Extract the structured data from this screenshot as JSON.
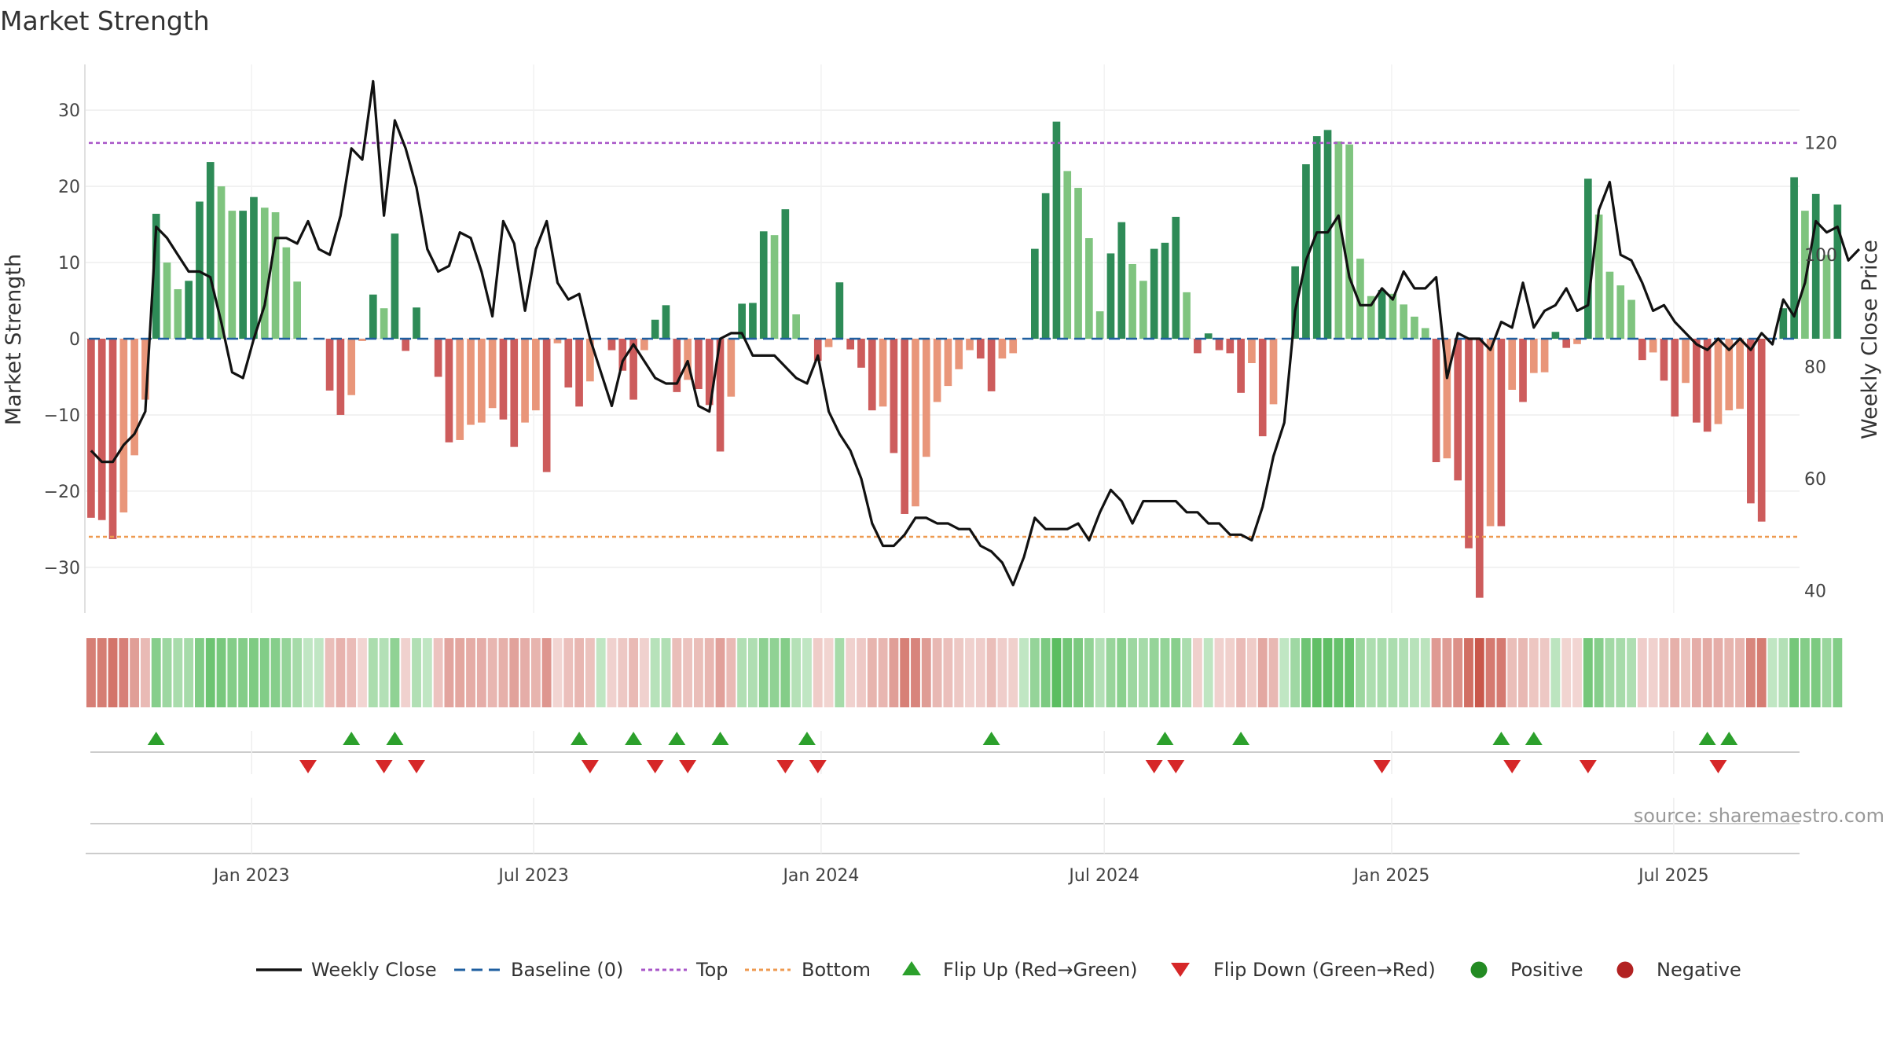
{
  "chart_data": {
    "type": "bar+line",
    "title": "Market Strength",
    "y_left_label": "Market Strength",
    "y_right_label": "Weekly Close Price",
    "y_left_range": [
      -36,
      36
    ],
    "y_right_range": [
      36,
      134
    ],
    "y_left_ticks": [
      30,
      20,
      10,
      0,
      -10,
      -20,
      -30
    ],
    "y_left_tick_labels": [
      "30",
      "20",
      "10",
      "0",
      "−10",
      "−20",
      "−30"
    ],
    "y_right_ticks": [
      120,
      100,
      80,
      60,
      40
    ],
    "y_right_tick_labels": [
      "120",
      "100",
      "80",
      "60",
      "40"
    ],
    "x_range_weeks": [
      0,
      158
    ],
    "x_ticks": [
      {
        "label": "Jan 2023",
        "week": 15.3
      },
      {
        "label": "Jul 2023",
        "week": 41.3
      },
      {
        "label": "Jan 2024",
        "week": 67.8
      },
      {
        "label": "Jul 2024",
        "week": 93.9
      },
      {
        "label": "Jan 2025",
        "week": 120.4
      },
      {
        "label": "Jul 2025",
        "week": 146.4
      }
    ],
    "top_line": 25.7,
    "bottom_line": -26,
    "baseline": 0,
    "market_strength": [
      -23.5,
      -23.8,
      -26.3,
      -22.8,
      -15.3,
      -8,
      16.4,
      10,
      6.5,
      7.6,
      18,
      23.2,
      20,
      16.8,
      16.8,
      18.6,
      17.2,
      16.6,
      12,
      7.5,
      0,
      0,
      -6.8,
      -10,
      -7.4,
      -0.3,
      5.8,
      4,
      13.8,
      -1.6,
      4.1,
      0,
      -5,
      -13.6,
      -13.3,
      -11.3,
      -11,
      -9.1,
      -10.6,
      -14.2,
      -11,
      -9.4,
      -17.5,
      -0.6,
      -6.4,
      -8.9,
      -5.6,
      0,
      -1.5,
      -4.2,
      -8,
      -1.5,
      2.5,
      4.4,
      -7,
      -5.4,
      -6.6,
      -8.7,
      -14.8,
      -7.6,
      4.6,
      4.7,
      14.1,
      13.6,
      17,
      3.2,
      0,
      -2.9,
      -1.1,
      7.4,
      -1.4,
      -3.8,
      -9.4,
      -8.9,
      -15,
      -23,
      -22,
      -15.5,
      -8.3,
      -6.2,
      -4,
      -1.5,
      -2.6,
      -6.9,
      -2.6,
      -1.9,
      0,
      11.8,
      19.1,
      28.5,
      22,
      19.8,
      13.2,
      3.6,
      11.2,
      15.3,
      9.8,
      7.6,
      11.8,
      12.6,
      16,
      6.1,
      -1.9,
      0.7,
      -1.5,
      -1.9,
      -7.1,
      -3.2,
      -12.8,
      -8.6,
      0,
      9.5,
      22.9,
      26.6,
      27.4,
      25.9,
      25.5,
      10.5,
      5.6,
      6.4,
      5.9,
      4.5,
      2.9,
      1.4,
      -16.2,
      -15.7,
      -18.6,
      -27.5,
      -34,
      -24.6,
      -24.6,
      -6.7,
      -8.3,
      -4.5,
      -4.4,
      0.9,
      -1.2,
      -0.7,
      21,
      16.3,
      8.8,
      7,
      5.1,
      -2.8,
      -1.8,
      -5.5,
      -10.2,
      -5.8,
      -11,
      -12.2,
      -11.2,
      -9.4,
      -9.2,
      -21.6,
      -24,
      0,
      4,
      21.2,
      16.8,
      19,
      11,
      17.6
    ],
    "weekly_close": [
      65,
      63,
      63,
      66,
      68,
      72,
      105,
      103,
      100,
      97,
      97,
      96,
      88,
      79,
      78,
      85,
      91,
      103,
      103,
      102,
      106,
      101,
      100,
      107,
      119,
      117,
      131,
      107,
      124,
      119,
      112,
      101,
      97,
      98,
      104,
      103,
      97,
      89,
      106,
      102,
      90,
      101,
      106,
      95,
      92,
      93,
      85,
      79,
      73,
      81,
      84,
      81,
      78,
      77,
      77,
      81,
      73,
      72,
      85,
      86,
      86,
      82,
      82,
      82,
      80,
      78,
      77,
      82,
      72,
      68,
      65,
      60,
      52,
      48,
      48,
      50,
      53,
      53,
      52,
      52,
      51,
      51,
      48,
      47,
      45,
      41,
      46,
      53,
      51,
      51,
      51,
      52,
      49,
      54,
      58,
      56,
      52,
      56,
      56,
      56,
      56,
      54,
      54,
      52,
      52,
      50,
      50,
      49,
      55,
      64,
      70,
      90,
      99,
      104,
      104,
      107,
      96,
      91,
      91,
      94,
      92,
      97,
      94,
      94,
      96,
      78,
      86,
      85,
      85,
      83,
      88,
      87,
      95,
      87,
      90,
      91,
      94,
      90,
      91,
      108,
      113,
      100,
      99,
      95,
      90,
      91,
      88,
      86,
      84,
      83,
      85,
      83,
      85,
      83,
      86,
      84,
      92,
      89,
      95,
      106,
      104,
      105,
      99,
      101
    ],
    "flip_up_weeks": [
      6,
      24,
      28,
      45,
      50,
      54,
      58,
      66,
      83,
      99,
      106,
      130,
      133,
      149,
      151
    ],
    "flip_down_weeks": [
      20,
      27,
      30,
      46,
      52,
      55,
      64,
      67,
      98,
      100,
      119,
      131,
      138,
      150
    ],
    "series": [
      {
        "name": "Weekly Close",
        "style": "solid",
        "color": "#111111"
      },
      {
        "name": "Baseline (0)",
        "style": "dashed",
        "color": "#1f5fa0"
      },
      {
        "name": "Top",
        "style": "dotted",
        "color": "#a855c8"
      },
      {
        "name": "Bottom",
        "style": "dotted",
        "color": "#ee9a50"
      },
      {
        "name": "Flip Up (Red→Green)",
        "style": "triangle-up",
        "color": "#2ca02c"
      },
      {
        "name": "Flip Down (Green→Red)",
        "style": "triangle-down",
        "color": "#d62728"
      },
      {
        "name": "Positive",
        "style": "circle",
        "color": "#238b23"
      },
      {
        "name": "Negative",
        "style": "circle",
        "color": "#b22222"
      }
    ],
    "colors": {
      "pos_strong": "#2e8b57",
      "pos_weak": "#7fc47f",
      "neg_strong": "#cd5c5c",
      "neg_weak": "#e9967a",
      "heat_pos": "#3cb043",
      "heat_neg": "#c0392b"
    }
  },
  "legend": {
    "items": [
      "Weekly Close",
      "Baseline (0)",
      "Top",
      "Bottom",
      "Flip Up (Red→Green)",
      "Flip Down (Green→Red)",
      "Positive",
      "Negative"
    ]
  },
  "footer": {
    "source": "source: sharemaestro.com"
  }
}
